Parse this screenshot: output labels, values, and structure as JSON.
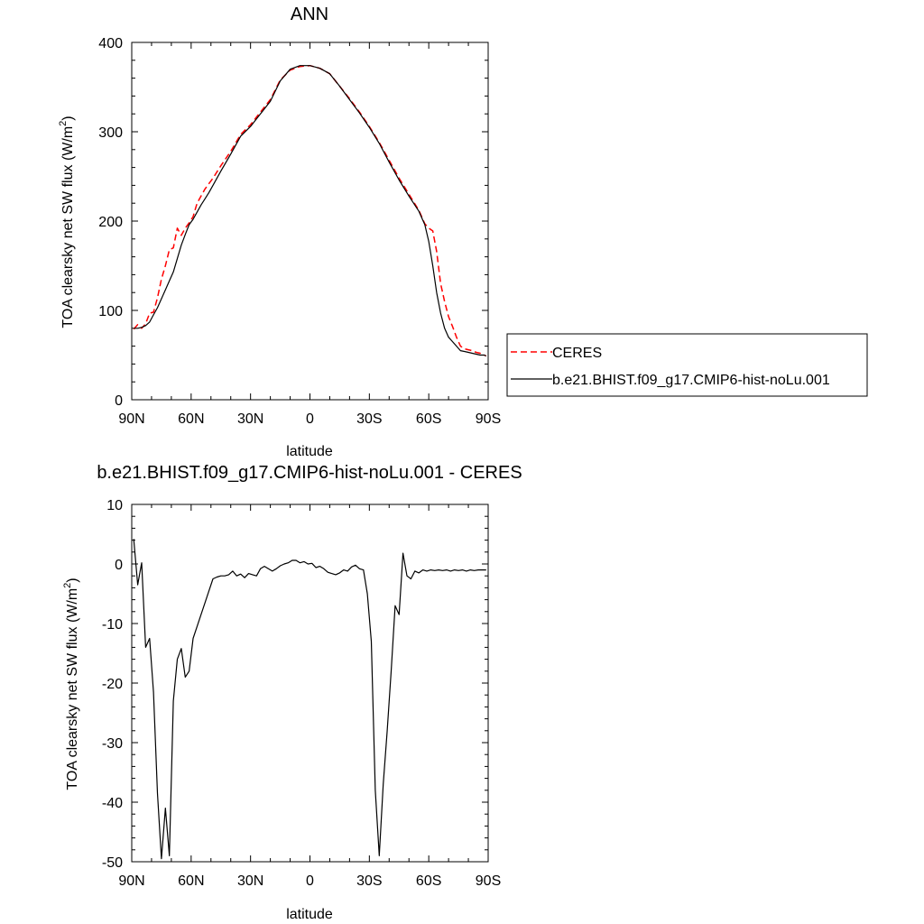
{
  "chart_data": [
    {
      "type": "line",
      "title": "ANN",
      "xlabel": "latitude",
      "ylabel": "TOA clearsky net SW flux (W/m^2)",
      "ylabel_main": "TOA clearsky net SW flux (W/m",
      "ylabel_sup": "2",
      "ylabel_end": ")",
      "xlim": [
        -90,
        90
      ],
      "ylim": [
        0,
        400
      ],
      "xticks": [
        -90,
        -60,
        -30,
        0,
        30,
        60,
        90
      ],
      "xtick_labels": [
        "90N",
        "60N",
        "30N",
        "0",
        "30S",
        "60S",
        "90S"
      ],
      "yticks": [
        0,
        100,
        200,
        300,
        400
      ],
      "ytick_labels": [
        "0",
        "100",
        "200",
        "300",
        "400"
      ],
      "grid": false,
      "legend_placement": "right",
      "series": [
        {
          "name": "CERES",
          "color": "#ff0000",
          "style": "dashed",
          "x": [
            -89,
            -87,
            -85,
            -83,
            -81,
            -79,
            -77,
            -75,
            -73,
            -71,
            -69,
            -67,
            -65,
            -63,
            -61,
            -59,
            -57,
            -55,
            -53,
            -51,
            -49,
            -45,
            -40,
            -35,
            -30,
            -25,
            -20,
            -15,
            -10,
            -5,
            0,
            5,
            10,
            15,
            20,
            25,
            30,
            35,
            40,
            45,
            50,
            55,
            58,
            60,
            62,
            64,
            66,
            68,
            70,
            72,
            74,
            76,
            78,
            80,
            82,
            84,
            86,
            88,
            89
          ],
          "y": [
            79,
            84,
            80,
            85,
            97,
            98,
            114,
            135,
            150,
            168,
            170,
            192,
            184,
            192,
            198,
            205,
            220,
            228,
            236,
            242,
            248,
            262,
            278,
            297,
            308,
            322,
            336,
            358,
            369,
            373,
            374,
            371,
            365,
            351,
            337,
            322,
            306,
            288,
            268,
            248,
            230,
            212,
            197,
            192,
            189,
            166,
            130,
            110,
            93,
            82,
            70,
            60,
            57,
            56,
            55,
            53,
            52,
            50,
            49
          ]
        },
        {
          "name": "b.e21.BHIST.f09_g17.CMIP6-hist-noLu.001",
          "color": "#000000",
          "style": "solid",
          "x": [
            -89,
            -87,
            -85,
            -83,
            -81,
            -79,
            -77,
            -75,
            -73,
            -71,
            -69,
            -67,
            -65,
            -63,
            -61,
            -59,
            -57,
            -55,
            -53,
            -51,
            -49,
            -45,
            -40,
            -35,
            -30,
            -25,
            -20,
            -15,
            -10,
            -5,
            0,
            5,
            10,
            15,
            20,
            25,
            30,
            35,
            40,
            45,
            50,
            55,
            58,
            60,
            62,
            64,
            66,
            68,
            70,
            72,
            74,
            76,
            78,
            80,
            82,
            84,
            86,
            88,
            89
          ],
          "y": [
            80,
            80,
            81,
            83,
            87,
            95,
            103,
            113,
            123,
            133,
            143,
            158,
            173,
            185,
            196,
            202,
            210,
            218,
            225,
            232,
            240,
            256,
            275,
            295,
            306,
            320,
            334,
            357,
            370,
            374,
            374,
            371,
            365,
            351,
            336,
            321,
            305,
            287,
            266,
            246,
            228,
            211,
            196,
            177,
            150,
            120,
            97,
            80,
            70,
            65,
            60,
            55,
            54,
            53,
            52,
            51,
            50,
            50,
            49
          ]
        }
      ]
    },
    {
      "type": "line",
      "title": "b.e21.BHIST.f09_g17.CMIP6-hist-noLu.001 - CERES",
      "xlabel": "latitude",
      "ylabel": "TOA clearsky net SW flux (W/m^2)",
      "ylabel_main": "TOA clearsky net SW flux (W/m",
      "ylabel_sup": "2",
      "ylabel_end": ")",
      "xlim": [
        -90,
        90
      ],
      "ylim": [
        -50,
        10
      ],
      "xticks": [
        -90,
        -60,
        -30,
        0,
        30,
        60,
        90
      ],
      "xtick_labels": [
        "90N",
        "60N",
        "30N",
        "0",
        "30S",
        "60S",
        "90S"
      ],
      "yticks": [
        -50,
        -40,
        -30,
        -20,
        -10,
        0,
        10
      ],
      "ytick_labels": [
        "-50",
        "-40",
        "-30",
        "-20",
        "-10",
        "0",
        "10"
      ],
      "grid": false,
      "series": [
        {
          "color": "#000000",
          "style": "solid",
          "x": [
            -89,
            -87,
            -85,
            -83,
            -81,
            -79,
            -77,
            -75,
            -73,
            -71,
            -69,
            -67,
            -65,
            -63,
            -61,
            -59,
            -57,
            -55,
            -53,
            -51,
            -49,
            -47,
            -45,
            -43,
            -41,
            -39,
            -37,
            -35,
            -33,
            -31,
            -29,
            -27,
            -25,
            -23,
            -21,
            -19,
            -17,
            -15,
            -13,
            -11,
            -9,
            -7,
            -5,
            -3,
            -1,
            1,
            3,
            5,
            7,
            9,
            11,
            13,
            15,
            17,
            19,
            21,
            23,
            25,
            27,
            29,
            31,
            33,
            35,
            37,
            39,
            41,
            43,
            45,
            47,
            49,
            51,
            53,
            55,
            57,
            59,
            61,
            63,
            65,
            67,
            69,
            71,
            73,
            75,
            77,
            79,
            81,
            83,
            85,
            87,
            89
          ],
          "y": [
            4.2,
            -3.5,
            0.2,
            -14.0,
            -12.5,
            -21.5,
            -38.5,
            -49.5,
            -41.0,
            -49.0,
            -23.0,
            -16.0,
            -14.2,
            -19.0,
            -18.0,
            -12.5,
            -10.5,
            -8.5,
            -6.5,
            -4.5,
            -2.5,
            -2.2,
            -2.0,
            -2.0,
            -1.8,
            -1.2,
            -2.0,
            -1.7,
            -2.3,
            -1.6,
            -1.8,
            -2.0,
            -0.8,
            -0.4,
            -0.8,
            -1.2,
            -0.8,
            -0.3,
            0.0,
            0.2,
            0.6,
            0.6,
            0.2,
            0.4,
            0.0,
            0.1,
            -0.6,
            -0.4,
            -0.8,
            -1.4,
            -1.6,
            -1.8,
            -1.5,
            -1.0,
            -1.2,
            -0.5,
            -0.2,
            -0.8,
            -1.0,
            -5.0,
            -13.0,
            -38.0,
            -49.0,
            -37.0,
            -28.0,
            -18.0,
            -7.0,
            -8.5,
            1.8,
            -2.0,
            -2.5,
            -1.2,
            -1.5,
            -1.0,
            -1.2,
            -1.0,
            -1.1,
            -1.0,
            -1.1,
            -1.0,
            -1.2,
            -1.0,
            -1.1,
            -1.0,
            -1.2,
            -1.0,
            -1.1,
            -1.0,
            -1.0,
            -1.0
          ]
        }
      ]
    }
  ]
}
